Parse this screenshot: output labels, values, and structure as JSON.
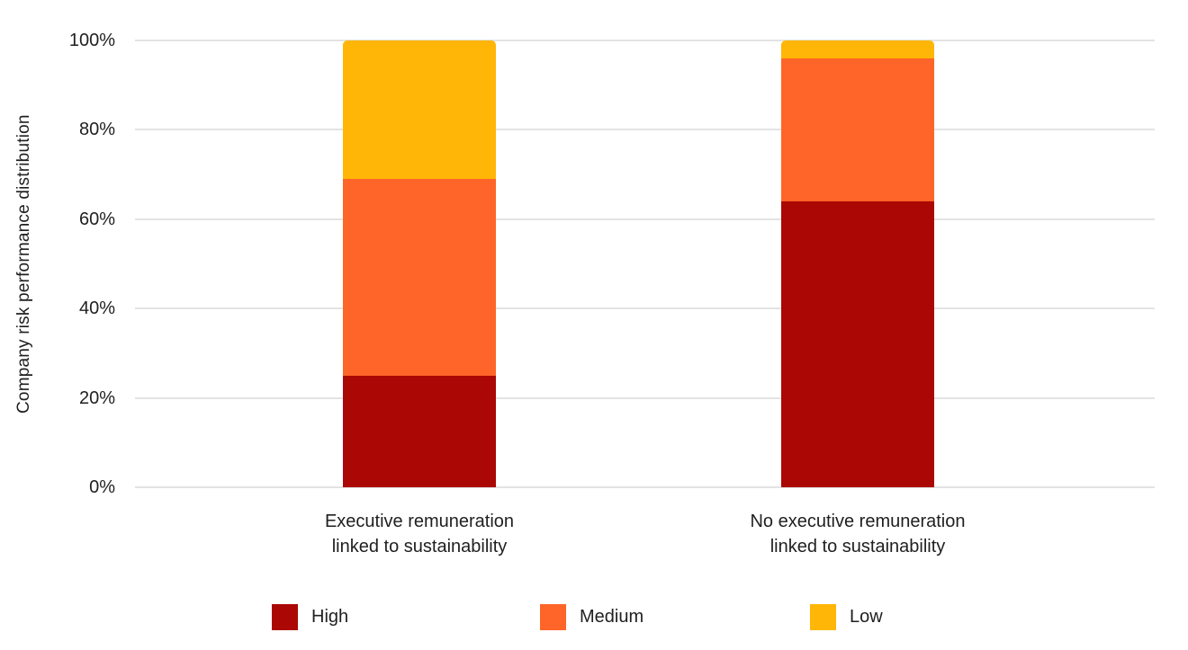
{
  "chart_data": {
    "type": "bar",
    "subtype": "stacked-100-percent",
    "title": "",
    "xlabel": "",
    "ylabel": "Company risk performance distribution",
    "categories": [
      [
        "Executive remuneration",
        "linked to sustainability"
      ],
      [
        "No executive remuneration",
        "linked to sustainability"
      ]
    ],
    "series": [
      {
        "name": "High",
        "color": "#AB0705",
        "values": [
          25,
          64
        ]
      },
      {
        "name": "Medium",
        "color": "#FF6428",
        "values": [
          44,
          32
        ]
      },
      {
        "name": "Low",
        "color": "#FFB606",
        "values": [
          31,
          4
        ]
      }
    ],
    "ylim": [
      0,
      100
    ],
    "yticks": [
      0,
      20,
      40,
      60,
      80,
      100
    ],
    "ytick_labels": [
      "0%",
      "20%",
      "40%",
      "60%",
      "80%",
      "100%"
    ],
    "grid": true,
    "legend_position": "bottom"
  },
  "layout_colors": {
    "background": "#ffffff",
    "gridline": "#e3e3e3",
    "text": "#1f1f1f"
  }
}
